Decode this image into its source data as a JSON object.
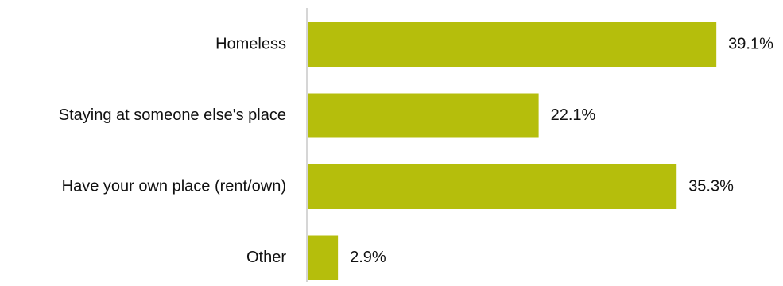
{
  "chart_data": {
    "type": "bar",
    "orientation": "horizontal",
    "categories": [
      "Homeless",
      "Staying at someone else's place",
      "Have your own place (rent/own)",
      "Other"
    ],
    "values": [
      39.1,
      22.1,
      35.3,
      2.9
    ],
    "value_labels": [
      "39.1%",
      "22.1%",
      "35.3%",
      "2.9%"
    ],
    "unit": "%",
    "title": "",
    "xlabel": "",
    "ylabel": "",
    "xlim": [
      0,
      40
    ],
    "grid": false,
    "legend": "none",
    "colors": {
      "bar": "#b5be0c",
      "axis": "#c8c8c8",
      "text": "#111111"
    }
  }
}
